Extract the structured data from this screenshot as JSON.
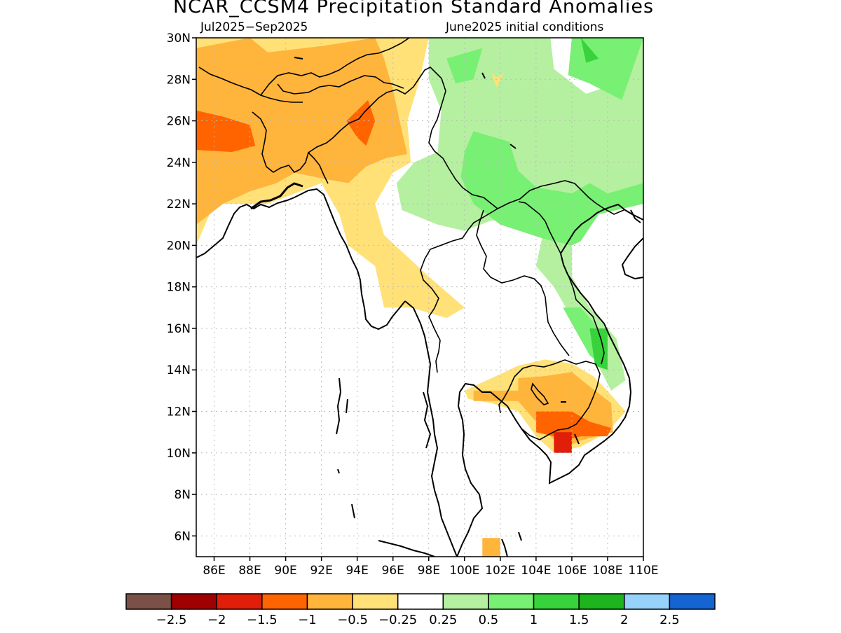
{
  "title": "NCAR_CCSM4 Precipitation Standard Anomalies",
  "subtitle_left": "Jul2025−Sep2025",
  "subtitle_right": "June2025 initial conditions",
  "map": {
    "lon_range": [
      85,
      110
    ],
    "lat_range": [
      5,
      30
    ],
    "lat_labels": [
      "30N",
      "28N",
      "26N",
      "24N",
      "22N",
      "20N",
      "18N",
      "16N",
      "14N",
      "12N",
      "10N",
      "8N",
      "6N"
    ],
    "lat_values": [
      30,
      28,
      26,
      24,
      22,
      20,
      18,
      16,
      14,
      12,
      10,
      8,
      6
    ],
    "lon_labels": [
      "86E",
      "88E",
      "90E",
      "92E",
      "94E",
      "96E",
      "98E",
      "100E",
      "102E",
      "104E",
      "106E",
      "108E",
      "110E"
    ],
    "lon_values": [
      86,
      88,
      90,
      92,
      94,
      96,
      98,
      100,
      102,
      104,
      106,
      108,
      110
    ]
  },
  "colorbar": {
    "colors": [
      "#7b5046",
      "#a00000",
      "#e01e0a",
      "#ff6400",
      "#ffb43c",
      "#ffe178",
      "#ffffff",
      "#b4f0a0",
      "#78f073",
      "#37d23c",
      "#1eb41e",
      "#96d2fa",
      "#1464d2"
    ],
    "labels": [
      "−2.5",
      "−2",
      "−1.5",
      "−1",
      "−0.5",
      "−0.25",
      "0.25",
      "0.5",
      "1",
      "1.5",
      "2",
      "2.5"
    ]
  },
  "anomaly_regions": [
    {
      "level": "-0.25",
      "color": "#ffe178",
      "lonlat": [
        [
          85,
          30
        ],
        [
          98,
          30
        ],
        [
          97.5,
          28
        ],
        [
          96.8,
          26
        ],
        [
          97,
          24
        ],
        [
          96,
          23.5
        ],
        [
          95,
          22
        ],
        [
          95.5,
          20.5
        ],
        [
          98,
          18.5
        ],
        [
          100,
          17
        ],
        [
          99,
          16.5
        ],
        [
          97,
          17
        ],
        [
          95.5,
          17
        ],
        [
          95,
          19
        ],
        [
          93.5,
          20
        ],
        [
          93,
          21.5
        ],
        [
          92,
          23
        ],
        [
          89,
          22
        ],
        [
          88,
          22
        ],
        [
          86,
          22
        ],
        [
          85,
          20
        ]
      ]
    },
    {
      "level": "-0.5",
      "color": "#ffb43c",
      "lonlat": [
        [
          85,
          29.5
        ],
        [
          88,
          30
        ],
        [
          89,
          29.3
        ],
        [
          92,
          29.6
        ],
        [
          95,
          30
        ],
        [
          95.5,
          29
        ],
        [
          96,
          27.5
        ],
        [
          96.5,
          25.5
        ],
        [
          96.8,
          24.4
        ],
        [
          95.6,
          24.2
        ],
        [
          94.5,
          23.8
        ],
        [
          93.5,
          23
        ],
        [
          92.2,
          23.2
        ],
        [
          90.5,
          23.5
        ],
        [
          89.5,
          23
        ],
        [
          88,
          22.6
        ],
        [
          86.5,
          22
        ],
        [
          85,
          21
        ]
      ]
    },
    {
      "level": "-1",
      "color": "#ff6400",
      "lonlat": [
        [
          85,
          26.5
        ],
        [
          86.5,
          26.2
        ],
        [
          88,
          25.8
        ],
        [
          88.3,
          24.8
        ],
        [
          87,
          24.5
        ],
        [
          85,
          24.6
        ]
      ]
    },
    {
      "level": "-1",
      "color": "#ff6400",
      "lonlat": [
        [
          93.4,
          26
        ],
        [
          94.6,
          27
        ],
        [
          95,
          26
        ],
        [
          94.5,
          24.8
        ],
        [
          94,
          25.2
        ]
      ]
    },
    {
      "level": "0.25",
      "color": "#b4f0a0",
      "lonlat": [
        [
          98,
          30
        ],
        [
          104.8,
          30
        ],
        [
          105,
          28.5
        ],
        [
          106.8,
          27.3
        ],
        [
          108.5,
          27.8
        ],
        [
          109,
          29
        ],
        [
          110,
          30
        ],
        [
          110,
          22
        ],
        [
          108.5,
          22
        ],
        [
          107.2,
          21.5
        ],
        [
          106,
          20
        ],
        [
          106,
          18.5
        ],
        [
          107,
          17
        ],
        [
          108.5,
          15.5
        ],
        [
          109,
          13.5
        ],
        [
          108.2,
          13
        ],
        [
          107,
          15
        ],
        [
          106,
          16.5
        ],
        [
          105,
          18
        ],
        [
          104,
          19
        ],
        [
          104.5,
          21
        ],
        [
          101.5,
          21.2
        ],
        [
          100,
          20.7
        ],
        [
          98.5,
          21
        ],
        [
          96.5,
          21.7
        ],
        [
          96.2,
          23
        ],
        [
          97.2,
          24
        ],
        [
          98.5,
          24.5
        ],
        [
          98.7,
          26.5
        ],
        [
          98,
          28
        ]
      ]
    },
    {
      "level": "0.5",
      "color": "#78f073",
      "lonlat": [
        [
          99,
          29
        ],
        [
          101,
          29.5
        ],
        [
          100.5,
          28
        ],
        [
          99.5,
          27.8
        ]
      ]
    },
    {
      "level": "0.5",
      "color": "#78f073",
      "lonlat": [
        [
          106,
          30
        ],
        [
          110,
          30
        ],
        [
          109,
          27.5
        ],
        [
          108.8,
          27
        ],
        [
          107,
          27.8
        ],
        [
          105.8,
          28.2
        ]
      ]
    },
    {
      "level": "0.5",
      "color": "#78f073",
      "lonlat": [
        [
          100.5,
          25.5
        ],
        [
          102.5,
          25
        ],
        [
          103,
          23.6
        ],
        [
          104,
          22.8
        ],
        [
          106,
          22.5
        ],
        [
          107,
          23
        ],
        [
          108,
          22.5
        ],
        [
          110,
          23
        ],
        [
          110,
          22
        ],
        [
          107.5,
          21.5
        ],
        [
          106.5,
          20.2
        ],
        [
          106,
          20
        ],
        [
          104.5,
          20.3
        ],
        [
          102,
          21
        ],
        [
          100.5,
          22
        ],
        [
          99.8,
          23.3
        ],
        [
          100,
          24.5
        ]
      ]
    },
    {
      "level": "0.5",
      "color": "#78f073",
      "lonlat": [
        [
          105.5,
          17
        ],
        [
          106.5,
          17
        ],
        [
          107.5,
          16
        ],
        [
          108,
          15.5
        ],
        [
          108,
          14
        ],
        [
          107,
          14.7
        ]
      ]
    },
    {
      "level": "1",
      "color": "#37d23c",
      "lonlat": [
        [
          106.5,
          30
        ],
        [
          107.5,
          29
        ],
        [
          106.8,
          28.8
        ]
      ]
    },
    {
      "level": "1",
      "color": "#37d23c",
      "lonlat": [
        [
          107,
          16
        ],
        [
          108,
          16
        ],
        [
          108,
          14
        ],
        [
          107.3,
          14.2
        ]
      ]
    },
    {
      "level": "-0.25",
      "color": "#ffe178",
      "lonlat": [
        [
          100,
          13
        ],
        [
          101.5,
          13.6
        ],
        [
          103,
          14.2
        ],
        [
          104.5,
          14.5
        ],
        [
          106,
          14.3
        ],
        [
          107.2,
          13.7
        ],
        [
          108.3,
          12.7
        ],
        [
          109,
          12
        ],
        [
          108,
          11
        ],
        [
          106.5,
          10.3
        ],
        [
          105,
          10
        ],
        [
          104,
          10.8
        ],
        [
          103,
          12
        ],
        [
          101.5,
          12.4
        ],
        [
          100.2,
          12.6
        ]
      ]
    },
    {
      "level": "-0.5",
      "color": "#ffb43c",
      "lonlat": [
        [
          100.5,
          13
        ],
        [
          103,
          13
        ],
        [
          103,
          13.6
        ],
        [
          104.5,
          13.7
        ],
        [
          106,
          13.9
        ],
        [
          107,
          13.2
        ],
        [
          108.2,
          12.4
        ],
        [
          108.3,
          11
        ],
        [
          106.5,
          10.6
        ],
        [
          105.5,
          10.2
        ],
        [
          104,
          11.5
        ],
        [
          103,
          12.5
        ],
        [
          100.5,
          12.5
        ]
      ]
    },
    {
      "level": "-1",
      "color": "#ff6400",
      "lonlat": [
        [
          104,
          12
        ],
        [
          106,
          12
        ],
        [
          107,
          11.5
        ],
        [
          108.2,
          11.2
        ],
        [
          108,
          10.8
        ],
        [
          106.5,
          10.8
        ],
        [
          106,
          10.7
        ],
        [
          105,
          10.8
        ],
        [
          104,
          11
        ]
      ]
    },
    {
      "level": "-1.5",
      "color": "#e01e0a",
      "lonlat": [
        [
          105,
          11
        ],
        [
          106,
          11
        ],
        [
          106,
          10
        ],
        [
          105,
          10
        ]
      ]
    },
    {
      "level": "-0.5",
      "color": "#ffb43c",
      "lonlat": [
        [
          101,
          5.9
        ],
        [
          102,
          5.9
        ],
        [
          102,
          5
        ],
        [
          101,
          5
        ]
      ]
    },
    {
      "level": "-0.25",
      "color": "#ffe178",
      "lonlat": [
        [
          101.5,
          28.3
        ],
        [
          101.8,
          27.6
        ],
        [
          102.2,
          28.3
        ],
        [
          101.8,
          28.1
        ]
      ]
    }
  ]
}
